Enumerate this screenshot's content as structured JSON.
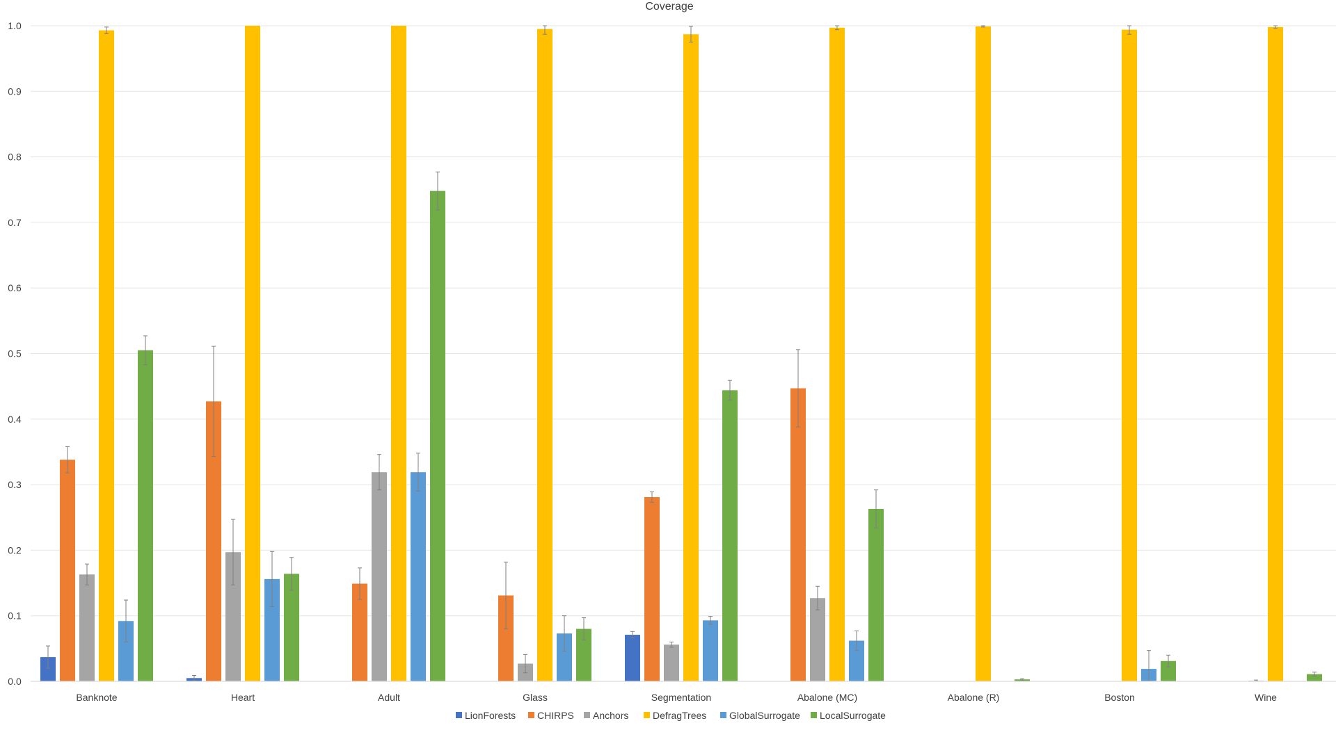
{
  "chart_data": {
    "type": "bar",
    "title": "Coverage",
    "xlabel": "",
    "ylabel": "",
    "ylim": [
      0,
      1.0
    ],
    "yticks": [
      "0.0",
      "0.1",
      "0.2",
      "0.3",
      "0.4",
      "0.5",
      "0.6",
      "0.7",
      "0.8",
      "0.9",
      "1.0"
    ],
    "grid": true,
    "legend_position": "bottom",
    "error_bars": true,
    "categories": [
      "Banknote",
      "Heart",
      "Adult",
      "Glass",
      "Segmentation",
      "Abalone (MC)",
      "Abalone (R)",
      "Boston",
      "Wine"
    ],
    "series": [
      {
        "name": "LionForests",
        "color": "#4472c4",
        "values": [
          0.037,
          0.005,
          0,
          0,
          0.071,
          0,
          0,
          0,
          0
        ],
        "errors": [
          0.017,
          0.004,
          0,
          0,
          0.005,
          0,
          0,
          0,
          0
        ]
      },
      {
        "name": "CHIRPS",
        "color": "#ed7d31",
        "values": [
          0.338,
          0.427,
          0.149,
          0.131,
          0.281,
          0.447,
          0,
          0,
          0
        ],
        "errors": [
          0.02,
          0.084,
          0.024,
          0.051,
          0.008,
          0.059,
          0,
          0,
          0
        ]
      },
      {
        "name": "Anchors",
        "color": "#a5a5a5",
        "values": [
          0.163,
          0.197,
          0.319,
          0.027,
          0.056,
          0.127,
          0,
          0,
          0.001
        ],
        "errors": [
          0.016,
          0.05,
          0.027,
          0.014,
          0.004,
          0.018,
          0,
          0,
          0.001
        ]
      },
      {
        "name": "DefragTrees",
        "color": "#ffc000",
        "values": [
          0.993,
          1.0,
          1.0,
          0.995,
          0.987,
          0.997,
          0.999,
          0.994,
          0.998
        ],
        "errors": [
          0.005,
          0,
          0,
          0.008,
          0.012,
          0.003,
          0.001,
          0.007,
          0.002
        ]
      },
      {
        "name": "GlobalSurrogate",
        "color": "#5b9bd5",
        "values": [
          0.092,
          0.156,
          0.319,
          0.073,
          0.093,
          0.062,
          0,
          0.019,
          0
        ],
        "errors": [
          0.032,
          0.042,
          0.029,
          0.027,
          0.006,
          0.015,
          0,
          0.028,
          0
        ]
      },
      {
        "name": "LocalSurrogate",
        "color": "#70ad47",
        "values": [
          0.505,
          0.164,
          0.748,
          0.08,
          0.444,
          0.263,
          0.003,
          0.031,
          0.011
        ],
        "errors": [
          0.022,
          0.025,
          0.029,
          0.017,
          0.015,
          0.029,
          0.001,
          0.009,
          0.003
        ]
      }
    ]
  }
}
